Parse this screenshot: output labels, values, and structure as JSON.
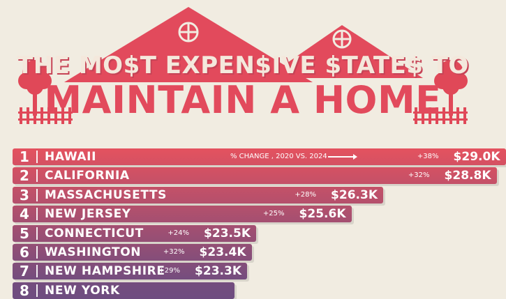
{
  "title": {
    "line1": "THE MO$T EXPEN$IVE $TATE$ TO",
    "line2": "MAINTAIN A HOME"
  },
  "change_note": "% CHANGE , 2020 VS. 2024",
  "colors": {
    "background": "#f1ece1",
    "title_red": "#e24a5c",
    "tree_red": "#e04858",
    "bar_top": "#e4525f",
    "bar_bottom": "#6e4d80"
  },
  "chart_data": {
    "type": "bar",
    "orientation": "horizontal",
    "categories": [
      "HAWAII",
      "CALIFORNIA",
      "MASSACHUSETTS",
      "NEW JERSEY",
      "CONNECTICUT",
      "WASHINGTON",
      "NEW HAMPSHIRE",
      "NEW YORK"
    ],
    "ranks": [
      "1",
      "2",
      "3",
      "4",
      "5",
      "6",
      "7",
      "8"
    ],
    "values": [
      29.0,
      28.8,
      26.3,
      25.6,
      23.5,
      23.4,
      23.3,
      null
    ],
    "value_labels": [
      "$29.0K",
      "$28.8K",
      "$26.3K",
      "$25.6K",
      "$23.5K",
      "$23.4K",
      "$23.3K",
      ""
    ],
    "changes": [
      "+38%",
      "+32%",
      "+28%",
      "+25%",
      "+24%",
      "+32%",
      "+29%",
      ""
    ]
  }
}
